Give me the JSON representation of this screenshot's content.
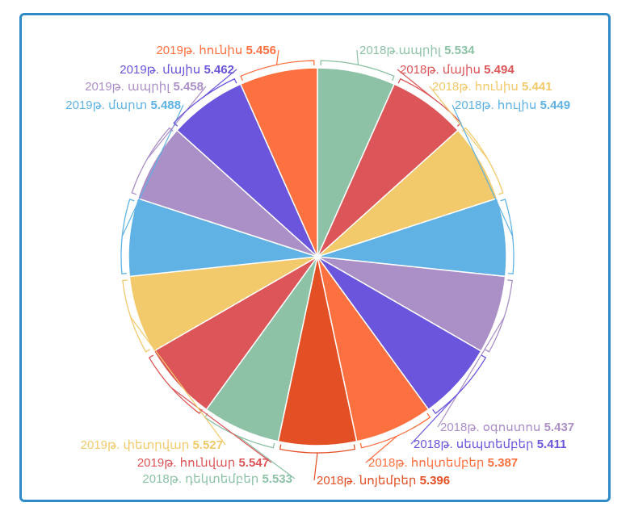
{
  "chart_data": {
    "type": "pie",
    "title": "",
    "slices": [
      {
        "label": "2018թ.ապրիլ",
        "value": 5.534,
        "color": "#8dc2a6"
      },
      {
        "label": "2018թ. մայիս",
        "value": 5.494,
        "color": "#dc5558"
      },
      {
        "label": "2018թ. հունիս",
        "value": 5.441,
        "color": "#f2ca6b"
      },
      {
        "label": "2018թ. հուլիս",
        "value": 5.449,
        "color": "#5fb2e3"
      },
      {
        "label": "2018թ. օգոստոս",
        "value": 5.437,
        "color": "#ab8fc7"
      },
      {
        "label": "2018թ. սեպտեմբեր",
        "value": 5.411,
        "color": "#6a55dc"
      },
      {
        "label": "2018թ. հոկտեմբեր",
        "value": 5.387,
        "color": "#fd7040"
      },
      {
        "label": "2018թ. նոյեմբեր",
        "value": 5.396,
        "color": "#e35026"
      },
      {
        "label": "2018թ. դեկտեմբեր",
        "value": 5.533,
        "color": "#8dc2a6"
      },
      {
        "label": "2019թ. հունվար",
        "value": 5.547,
        "color": "#dc5558"
      },
      {
        "label": "2019թ. փետրվար",
        "value": 5.527,
        "color": "#f2ca6b"
      },
      {
        "label": "2019թ. մարտ",
        "value": 5.488,
        "color": "#5fb2e3"
      },
      {
        "label": "2019թ. ապրիլ",
        "value": 5.458,
        "color": "#ab8fc7"
      },
      {
        "label": "2019թ. մայիս",
        "value": 5.462,
        "color": "#6a55dc"
      },
      {
        "label": "2019թ. հունիս",
        "value": 5.456,
        "color": "#fd7040"
      }
    ]
  },
  "frame": {
    "border_color": "#2e8bc8"
  }
}
